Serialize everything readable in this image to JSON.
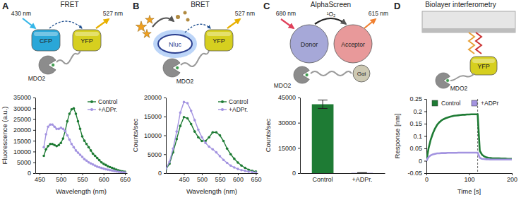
{
  "panels": [
    {
      "letter": "A",
      "title": "FRET",
      "labels": [
        "430 nm",
        "527 nm",
        "CFP",
        "YFP",
        "MDO2"
      ]
    },
    {
      "letter": "B",
      "title": "BRET",
      "labels": [
        "527 nm",
        "Nluc",
        "YFP",
        "MDO2"
      ]
    },
    {
      "letter": "C",
      "title": "AlphaScreen",
      "labels": [
        "680 nm",
        "615 nm",
        "¹O₂",
        "Donor",
        "Acceptor",
        "Gαi",
        "MDO2"
      ]
    },
    {
      "letter": "D",
      "title": "Biolayer interferometry",
      "labels": [
        "YFP",
        "MDO2"
      ]
    }
  ],
  "chart_data": [
    {
      "type": "line",
      "x_label": "Wavelength (nm)",
      "y_label": "Fluorescence (a.u.)",
      "x": [
        460,
        465,
        470,
        475,
        480,
        485,
        490,
        495,
        500,
        505,
        510,
        515,
        520,
        525,
        530,
        535,
        540,
        545,
        550,
        555,
        560,
        565,
        570,
        575,
        580,
        585,
        590,
        595,
        600,
        605,
        610,
        615,
        620,
        625,
        630,
        635,
        640,
        645,
        650
      ],
      "series": [
        {
          "name": "Control",
          "color": "#1e7b34",
          "marker": "circle",
          "values": [
            8000,
            11000,
            12500,
            13500,
            13500,
            13000,
            12500,
            13000,
            14000,
            16000,
            19500,
            24000,
            27500,
            29500,
            30000,
            27500,
            24000,
            20500,
            17000,
            15000,
            13500,
            12000,
            10500,
            9000,
            8000,
            7000,
            6000,
            5000,
            4300,
            3800,
            3200,
            2800,
            2400,
            2000,
            1600,
            1300,
            1000,
            800,
            600
          ]
        },
        {
          "name": "+ADPr.",
          "color": "#a393e0",
          "marker": "circle",
          "values": [
            12000,
            18000,
            21500,
            22500,
            22500,
            21500,
            20500,
            20500,
            21000,
            20500,
            19500,
            17500,
            15500,
            13500,
            12000,
            10500,
            9500,
            8500,
            7500,
            6500,
            5800,
            5000,
            4500,
            4000,
            3500,
            3000,
            2700,
            2400,
            2100,
            1800,
            1600,
            1400,
            1200,
            1000,
            800,
            650,
            500,
            400,
            300
          ]
        }
      ],
      "xlim": [
        440,
        655
      ],
      "xticks": [
        450,
        500,
        550,
        600,
        650
      ],
      "ylim": [
        0,
        35000
      ],
      "yticks": [
        0,
        5000,
        10000,
        15000,
        20000,
        25000,
        30000,
        35000
      ],
      "legend": "top-right"
    },
    {
      "type": "line",
      "x_label": "Wavelength (nm)",
      "y_label": "Counts/sec",
      "x": [
        400,
        410,
        420,
        430,
        440,
        450,
        460,
        470,
        480,
        490,
        500,
        510,
        520,
        530,
        540,
        550,
        560,
        570,
        580,
        590,
        600,
        610,
        620,
        630,
        640,
        650
      ],
      "series": [
        {
          "name": "Control",
          "color": "#1e7b34",
          "marker": "circle",
          "values": [
            1000,
            2500,
            5500,
            9000,
            12500,
            14800,
            14500,
            13000,
            11000,
            9500,
            8500,
            8500,
            9500,
            10800,
            10800,
            10000,
            8500,
            6500,
            5000,
            3800,
            2800,
            2000,
            1400,
            900,
            600,
            400
          ]
        },
        {
          "name": "+ADPr.",
          "color": "#a393e0",
          "marker": "circle",
          "values": [
            1200,
            3000,
            6500,
            11000,
            16000,
            18800,
            18500,
            16500,
            14000,
            11500,
            9500,
            8000,
            7000,
            6300,
            5500,
            4500,
            3500,
            2700,
            2000,
            1500,
            1100,
            800,
            600,
            400,
            300,
            200
          ]
        }
      ],
      "xlim": [
        400,
        655
      ],
      "xticks": [
        450,
        500,
        550,
        600,
        650
      ],
      "ylim": [
        0,
        20000
      ],
      "yticks": [
        0,
        5000,
        10000,
        15000,
        20000
      ],
      "legend": "top-right"
    },
    {
      "type": "bar",
      "y_label": "Counts/sec",
      "categories": [
        "Control",
        "+ADPr."
      ],
      "values": [
        41000,
        200
      ],
      "errors": [
        2500,
        100
      ],
      "colors": [
        "#1e7b34",
        "#a393e0"
      ],
      "ylim": [
        0,
        45000
      ],
      "yticks": [
        0,
        15000,
        30000,
        45000
      ]
    },
    {
      "type": "line",
      "x_label": "Time [s]",
      "y_label": "Response [nm]",
      "x": [
        0,
        5,
        10,
        15,
        20,
        25,
        30,
        35,
        40,
        45,
        50,
        55,
        60,
        65,
        70,
        75,
        80,
        85,
        90,
        95,
        100,
        105,
        110,
        115,
        120,
        125,
        130,
        135,
        140,
        145,
        150,
        155,
        160,
        165,
        170,
        175,
        180,
        185,
        190,
        195,
        200
      ],
      "series": [
        {
          "name": "Control",
          "color": "#1e7b34",
          "values": [
            0,
            0.05,
            0.085,
            0.11,
            0.13,
            0.145,
            0.155,
            0.163,
            0.168,
            0.172,
            0.175,
            0.178,
            0.18,
            0.182,
            0.183,
            0.184,
            0.185,
            0.186,
            0.186,
            0.187,
            0.187,
            0.188,
            0.188,
            0.188,
            0.188,
            0.04,
            0.025,
            0.018,
            0.014,
            0.012,
            0.011,
            0.01,
            0.01,
            0.01,
            0.01,
            0.009,
            0.009,
            0.009,
            0.008,
            0.008,
            0.008
          ]
        },
        {
          "name": "+ADPr",
          "color": "#a393e0",
          "values": [
            0,
            0.015,
            0.022,
            0.026,
            0.028,
            0.03,
            0.03,
            0.031,
            0.031,
            0.031,
            0.032,
            0.032,
            0.032,
            0.032,
            0.032,
            0.033,
            0.033,
            0.033,
            0.033,
            0.033,
            0.033,
            0.033,
            0.033,
            0.033,
            0.033,
            0.012,
            0.008,
            0.007,
            0.006,
            0.006,
            0.005,
            0.005,
            0.005,
            0.005,
            0.005,
            0.005,
            0.005,
            0.005,
            0.005,
            0.005,
            0.005
          ]
        }
      ],
      "vline": 120,
      "xlim": [
        0,
        200
      ],
      "xticks": [
        0,
        100,
        200
      ],
      "ylim": [
        -0.05,
        0.25
      ],
      "yticks": [
        -0.05,
        0,
        0.05,
        0.1,
        0.15,
        0.2,
        0.25
      ],
      "legend": "top"
    }
  ]
}
